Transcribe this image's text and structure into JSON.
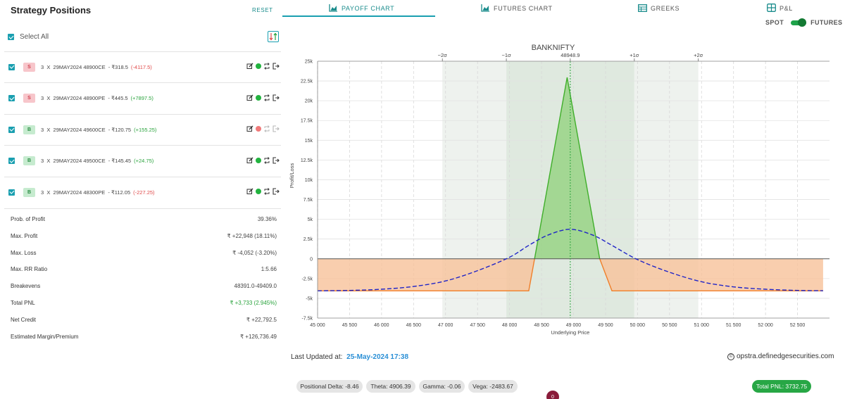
{
  "left": {
    "title": "Strategy Positions",
    "reset_label": "RESET",
    "select_all_label": "Select All",
    "positions": [
      {
        "side": "S",
        "qty": "3",
        "x": "X",
        "contract": "29MAY2024 48900CE",
        "price": "- ₹318.5",
        "pnl": "(-4117.5)",
        "pnl_sign": "neg",
        "status": "green"
      },
      {
        "side": "S",
        "qty": "3",
        "x": "X",
        "contract": "29MAY2024 48900PE",
        "price": "- ₹445.5",
        "pnl": "(+7897.5)",
        "pnl_sign": "pos",
        "status": "green"
      },
      {
        "side": "B",
        "qty": "3",
        "x": "X",
        "contract": "29MAY2024 49600CE",
        "price": "- ₹120.75",
        "pnl": "(+155.25)",
        "pnl_sign": "pos",
        "status": "red"
      },
      {
        "side": "B",
        "qty": "3",
        "x": "X",
        "contract": "29MAY2024 49500CE",
        "price": "- ₹145.45",
        "pnl": "(+24.75)",
        "pnl_sign": "pos",
        "status": "green"
      },
      {
        "side": "B",
        "qty": "3",
        "x": "X",
        "contract": "29MAY2024 48300PE",
        "price": "- ₹112.05",
        "pnl": "(-227.25)",
        "pnl_sign": "neg",
        "status": "green"
      }
    ],
    "stats": [
      {
        "label": "Prob. of Profit",
        "value": "39.36%",
        "color": "default"
      },
      {
        "label": "Max. Profit",
        "value": "₹ +22,948 (18.11%)",
        "color": "default"
      },
      {
        "label": "Max. Loss",
        "value": "₹ -4,052 (-3.20%)",
        "color": "default"
      },
      {
        "label": "Max. RR Ratio",
        "value": "1:5.66",
        "color": "default"
      },
      {
        "label": "Breakevens",
        "value": "48391.0-49409.0",
        "color": "default"
      },
      {
        "label": "Total PNL",
        "value": "₹ +3,733 (2.945%)",
        "color": "green"
      },
      {
        "label": "Net Credit",
        "value": "₹ +22,792.5",
        "color": "default"
      },
      {
        "label": "Estimated Margin/Premium",
        "value": "₹ +126,736.49",
        "color": "default"
      }
    ]
  },
  "tabs": [
    {
      "label": "PAYOFF CHART",
      "icon": "area-chart-icon",
      "active": true
    },
    {
      "label": "FUTURES CHART",
      "icon": "area-chart-icon",
      "active": false
    },
    {
      "label": "GREEKS",
      "icon": "table-icon",
      "active": false
    },
    {
      "label": "P&L",
      "icon": "grid-icon",
      "active": false
    }
  ],
  "toggle": {
    "left_label": "SPOT",
    "right_label": "FUTURES",
    "state": "futures"
  },
  "footer": {
    "updated_label": "Last Updated at:",
    "updated_value": "25-May-2024 17:38",
    "brand": "opstra.definedgesecurities.com",
    "brand_icon": "copyright-icon"
  },
  "greeks": {
    "delta": "Positional Delta: -8.46",
    "theta": "Theta: 4906.39",
    "gamma": "Gamma: -0.06",
    "vega": "Vega: -2483.67",
    "total_pnl": "Total PNL: 3732.75",
    "chat_badge": "0"
  },
  "colors": {
    "accent": "#1a9fb0",
    "payoff_line_profit": "#3fae2a",
    "payoff_fill_profit": "#8fd07a",
    "payoff_line_loss": "#f07f2a",
    "payoff_fill_loss": "#f7c29a",
    "expected_curve": "#1f24c7",
    "spot_line": "#2aa33d"
  },
  "chart_data": {
    "type": "area",
    "title": "BANKNIFTY",
    "xlabel": "Underlying Price",
    "ylabel": "Profit/Loss",
    "xlim": [
      45000,
      53000
    ],
    "ylim": [
      -7500,
      25000
    ],
    "x_ticks": [
      45000,
      45500,
      46000,
      46500,
      47000,
      47500,
      48000,
      48500,
      49000,
      49500,
      50000,
      50500,
      51000,
      51500,
      52000,
      52500
    ],
    "x_tick_labels": [
      "45 000",
      "45 500",
      "46 000",
      "46 500",
      "47 000",
      "47 500",
      "48 000",
      "48 500",
      "49 000",
      "49 500",
      "50 000",
      "50 500",
      "51 000",
      "51 500",
      "52 000",
      "52 500"
    ],
    "y_ticks": [
      -7500,
      -5000,
      -2500,
      0,
      2500,
      5000,
      7500,
      10000,
      12500,
      15000,
      17500,
      20000,
      22500,
      25000
    ],
    "y_tick_labels": [
      "-7.5k",
      "-5k",
      "-2.5k",
      "0",
      "2.5k",
      "5k",
      "7.5k",
      "10k",
      "12.5k",
      "15k",
      "17.5k",
      "20k",
      "22.5k",
      "25k"
    ],
    "spot": 48948.9,
    "spot_label": "48948.9",
    "sigma_levels": [
      {
        "label": "−2σ",
        "x": 46950
      },
      {
        "label": "−1σ",
        "x": 47950
      },
      {
        "label": "+1σ",
        "x": 49950
      },
      {
        "label": "+2σ",
        "x": 50950
      }
    ],
    "bands": [
      {
        "from": 46950,
        "to": 47950,
        "shade": "light"
      },
      {
        "from": 47950,
        "to": 49950,
        "shade": "dark"
      },
      {
        "from": 49950,
        "to": 50950,
        "shade": "light"
      }
    ],
    "series": [
      {
        "kind": "payoff_expiry",
        "x": [
          45000,
          48300,
          48391,
          48900,
          49409,
          49600,
          52900
        ],
        "y": [
          -4052,
          -4052,
          0,
          22948,
          0,
          -4052,
          -4052
        ]
      },
      {
        "kind": "payoff_today",
        "x": [
          45000,
          45500,
          46000,
          46500,
          47000,
          47500,
          48000,
          48300,
          48600,
          48948.9,
          49300,
          49600,
          50000,
          50500,
          51000,
          51500,
          52000,
          52500,
          52900
        ],
        "y": [
          -4052,
          -4000,
          -3850,
          -3500,
          -2800,
          -1500,
          200,
          1700,
          3000,
          3733,
          3000,
          1700,
          -100,
          -1700,
          -2900,
          -3550,
          -3850,
          -4000,
          -4040
        ]
      }
    ],
    "grid": true
  }
}
